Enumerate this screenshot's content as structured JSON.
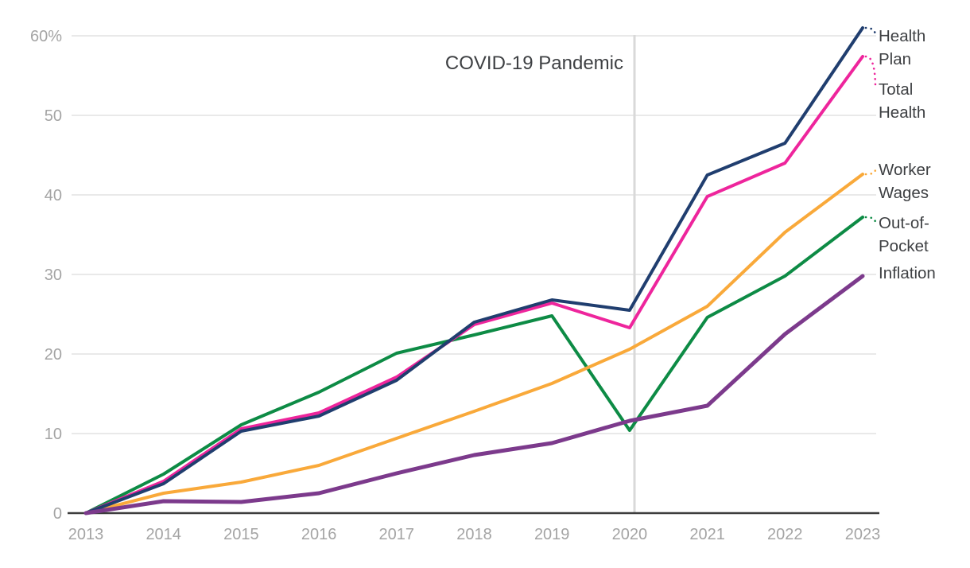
{
  "chart_data": {
    "type": "line",
    "title": "",
    "annotation": "COVID-19 Pandemic",
    "x": [
      2013,
      2014,
      2015,
      2016,
      2017,
      2018,
      2019,
      2020,
      2021,
      2022,
      2023
    ],
    "x_tick_labels": [
      "2013",
      "2014",
      "2015",
      "2016",
      "2017",
      "2018",
      "2019",
      "2020",
      "2021",
      "2022",
      "2023"
    ],
    "y_ticks": [
      0,
      10,
      20,
      30,
      40,
      50,
      60
    ],
    "y_tick_labels": [
      "0",
      "10",
      "20",
      "30",
      "40",
      "50",
      "60%"
    ],
    "ylim": [
      0,
      62
    ],
    "grid": "horizontal",
    "legend_position": "right-end-labels",
    "event_line": {
      "x": 2020,
      "label": "COVID-19 Pandemic"
    },
    "series": [
      {
        "name": "Health Plan",
        "label_lines": [
          "Health",
          "Plan"
        ],
        "color": "#203e6f",
        "values": [
          0,
          3.7,
          10.3,
          12.2,
          16.7,
          24.0,
          26.8,
          25.5,
          42.5,
          46.5,
          61.0
        ]
      },
      {
        "name": "Total Health",
        "label_lines": [
          "Total",
          "Health"
        ],
        "color": "#ee259c",
        "values": [
          0,
          4.0,
          10.6,
          12.6,
          17.1,
          23.7,
          26.4,
          23.3,
          39.8,
          44.0,
          57.4
        ]
      },
      {
        "name": "Worker Wages",
        "label_lines": [
          "Worker",
          "Wages"
        ],
        "color": "#f9a93a",
        "values": [
          0,
          2.5,
          3.9,
          6.0,
          9.4,
          12.8,
          16.3,
          20.6,
          26.0,
          35.3,
          42.6
        ]
      },
      {
        "name": "Out-of-Pocket",
        "label_lines": [
          "Out-of-",
          "Pocket"
        ],
        "color": "#0d8b45",
        "values": [
          0,
          4.9,
          11.1,
          15.2,
          20.1,
          22.4,
          24.8,
          10.4,
          24.6,
          29.8,
          37.2
        ]
      },
      {
        "name": "Inflation",
        "label_lines": [
          "Inflation"
        ],
        "color": "#7c3a8c",
        "values": [
          0,
          1.5,
          1.4,
          2.5,
          5.0,
          7.3,
          8.8,
          11.6,
          13.5,
          22.5,
          29.8
        ]
      }
    ],
    "colors": {
      "axis": "#3d3d3d",
      "gridline": "#e9e9e9",
      "event_line": "#d9d9d9",
      "tick_text": "#a4a4a4",
      "label_text": "#3e4043",
      "background": "#ffffff"
    }
  }
}
